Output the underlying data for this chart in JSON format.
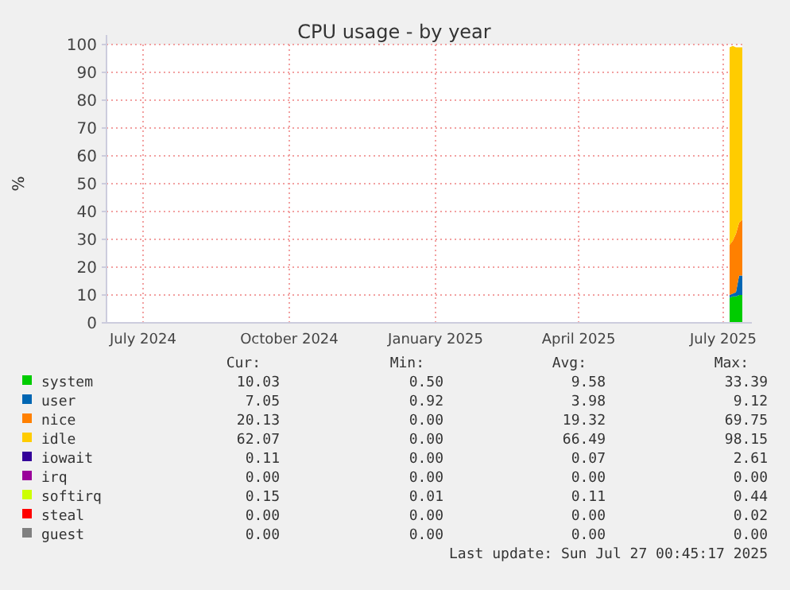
{
  "chart_data": {
    "type": "area",
    "title": "CPU usage - by year",
    "ylabel": "%",
    "stacked": true,
    "grid": true,
    "legend": "bottom",
    "x": [
      "2025-07-19",
      "2025-07-21",
      "2025-07-23",
      "2025-07-25",
      "2025-07-27"
    ],
    "xlim": [
      "2024-06-22",
      "2025-07-27"
    ],
    "xticks": [
      {
        "value": "2024-07-15",
        "label": "July 2024"
      },
      {
        "value": "2024-10-15",
        "label": "October 2024"
      },
      {
        "value": "2025-01-15",
        "label": "January 2025"
      },
      {
        "value": "2025-04-15",
        "label": "April 2025"
      },
      {
        "value": "2025-07-15",
        "label": "July 2025"
      }
    ],
    "ylim": [
      0,
      100
    ],
    "yticks": [
      0,
      10,
      20,
      30,
      40,
      50,
      60,
      70,
      80,
      90,
      100
    ],
    "series": [
      {
        "name": "system",
        "color": "#00cc00",
        "values": [
          9,
          9.5,
          9.5,
          10,
          10
        ]
      },
      {
        "name": "user",
        "color": "#0066b3",
        "values": [
          1,
          1,
          1.5,
          7,
          7
        ]
      },
      {
        "name": "nice",
        "color": "#ff8000",
        "values": [
          18,
          19,
          21,
          19,
          20
        ]
      },
      {
        "name": "idle",
        "color": "#ffcc00",
        "values": [
          71,
          70,
          67,
          63,
          62
        ]
      },
      {
        "name": "iowait",
        "color": "#330099",
        "values": [
          null,
          null,
          null,
          null,
          null
        ]
      },
      {
        "name": "irq",
        "color": "#990099",
        "values": [
          null,
          null,
          null,
          null,
          null
        ]
      },
      {
        "name": "softirq",
        "color": "#ccff00",
        "values": [
          null,
          null,
          null,
          null,
          null
        ]
      },
      {
        "name": "steal",
        "color": "#ff0000",
        "values": [
          null,
          null,
          null,
          null,
          null
        ]
      },
      {
        "name": "guest",
        "color": "#808080",
        "values": [
          null,
          null,
          null,
          null,
          null
        ]
      }
    ],
    "annotations": [
      "Cur:",
      "Min:",
      "Avg:",
      "Max:",
      "10.03",
      "0.50",
      "9.58",
      "33.39",
      "7.05",
      "0.92",
      "3.98",
      "9.12",
      "20.13",
      "0.00",
      "19.32",
      "69.75",
      "62.07",
      "0.00",
      "66.49",
      "98.15",
      "0.11",
      "0.00",
      "0.07",
      "2.61",
      "0.00",
      "0.00",
      "0.00",
      "0.00",
      "0.15",
      "0.01",
      "0.11",
      "0.44",
      "0.00",
      "0.00",
      "0.00",
      "0.02",
      "0.00",
      "0.00",
      "0.00",
      "0.00",
      "Last update: Sun Jul 27 00:45:17 2025"
    ]
  }
}
